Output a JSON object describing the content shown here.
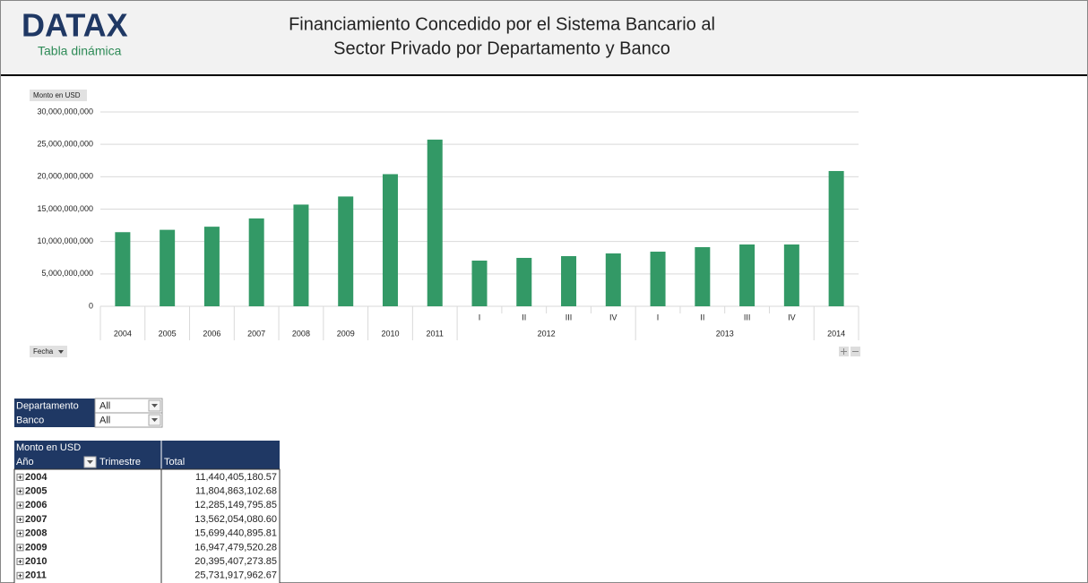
{
  "header": {
    "logo": "DATAX",
    "subtitle": "Tabla dinámica",
    "title": [
      "Financiamiento Concedido por el Sistema Bancario al",
      "Sector Privado por Departamento y Banco"
    ]
  },
  "chart_data": {
    "type": "bar",
    "y_label": "Monto en USD",
    "x_label": "Fecha",
    "categories": [
      "2004",
      "2005",
      "2006",
      "2007",
      "2008",
      "2009",
      "2010",
      "2011",
      "I",
      "II",
      "III",
      "IV",
      "I",
      "II",
      "III",
      "IV",
      "2014"
    ],
    "category_groups": [
      {
        "label": "2012",
        "first": 8,
        "count": 4
      },
      {
        "label": "2013",
        "first": 12,
        "count": 4
      }
    ],
    "values": [
      11440405180.57,
      11804863102.68,
      12285149795.85,
      13562054080.6,
      15699440895.81,
      16947479520.28,
      20395407273.85,
      25731917962.67,
      7050000000,
      7470000000,
      7740000000,
      8160000000,
      8430000000,
      9130000000,
      9540000000,
      9540000000,
      20880000000
    ],
    "color": "#339966",
    "ylim": [
      0,
      30000000000
    ],
    "yticks": [
      0,
      {
        "value": 5000000000,
        "label": "5,000,000,000"
      },
      {
        "value": 10000000000,
        "label": "10,000,000,000"
      },
      {
        "value": 15000000000,
        "label": "15,000,000,000"
      },
      {
        "value": 20000000000,
        "label": "20,000,000,000"
      },
      {
        "value": 25000000000,
        "label": "25,000,000,000"
      },
      {
        "value": 30000000000,
        "label": "30,000,000,000"
      }
    ],
    "grid": true
  },
  "filters": [
    {
      "label": "Departamento",
      "value": "All"
    },
    {
      "label": "Banco",
      "value": "All"
    }
  ],
  "pivot": {
    "measure": "Monto en USD",
    "row_field": "Año",
    "column_field": "Trimestre",
    "total_header": "Total",
    "rows": [
      [
        "2004",
        "11,440,405,180.57"
      ],
      [
        "2005",
        "11,804,863,102.68"
      ],
      [
        "2006",
        "12,285,149,795.85"
      ],
      [
        "2007",
        "13,562,054,080.60"
      ],
      [
        "2008",
        "15,699,440,895.81"
      ],
      [
        "2009",
        "16,947,479,520.28"
      ],
      [
        "2010",
        "20,395,407,273.85"
      ],
      [
        "2011",
        "25,731,917,962.67"
      ]
    ]
  }
}
